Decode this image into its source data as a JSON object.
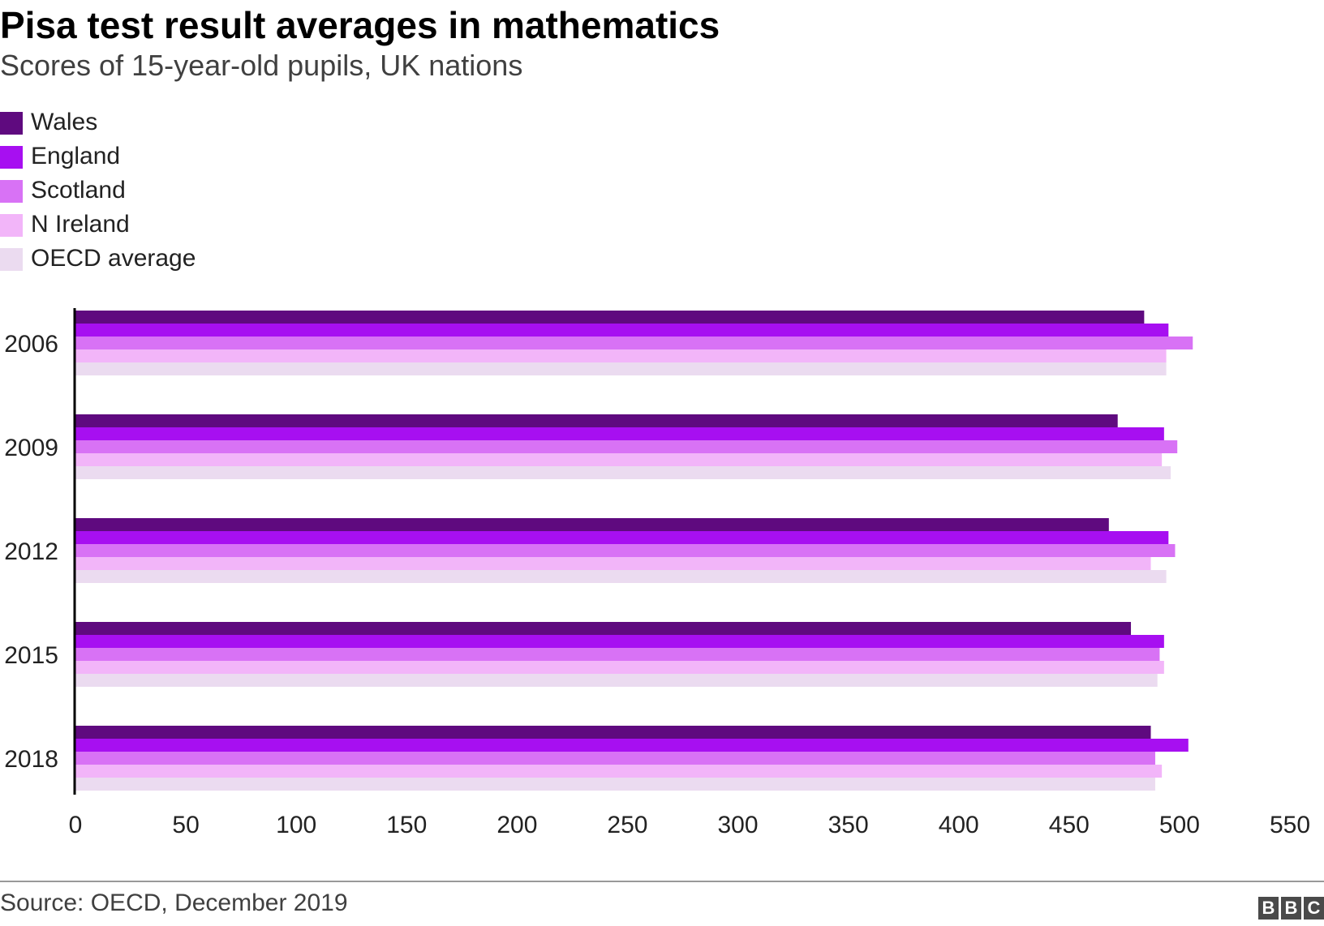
{
  "title": "Pisa test result averages in mathematics",
  "subtitle": "Scores of 15-year-old pupils, UK nations",
  "source": "Source: OECD, December 2019",
  "logo": {
    "letters": [
      "B",
      "B",
      "C"
    ],
    "text": "BBC"
  },
  "chart_data": {
    "type": "bar",
    "orientation": "horizontal",
    "title": "Pisa test result averages in mathematics",
    "subtitle": "Scores of 15-year-old pupils, UK nations",
    "categories": [
      "2006",
      "2009",
      "2012",
      "2015",
      "2018"
    ],
    "series": [
      {
        "name": "Wales",
        "color": "#5f0a7f",
        "values": [
          484,
          472,
          468,
          478,
          487
        ]
      },
      {
        "name": "England",
        "color": "#a70ff1",
        "values": [
          495,
          493,
          495,
          493,
          504
        ]
      },
      {
        "name": "Scotland",
        "color": "#d872f5",
        "values": [
          506,
          499,
          498,
          491,
          489
        ]
      },
      {
        "name": "N Ireland",
        "color": "#f2b5f9",
        "values": [
          494,
          492,
          487,
          493,
          492
        ]
      },
      {
        "name": "OECD average",
        "color": "#ebdbf0",
        "values": [
          494,
          496,
          494,
          490,
          489
        ]
      }
    ],
    "xlim": [
      0,
      550
    ],
    "xticks": [
      0,
      50,
      100,
      150,
      200,
      250,
      300,
      350,
      400,
      450,
      500,
      550
    ],
    "xlabel": "",
    "ylabel": "",
    "grid": false,
    "legend_position": "top-left"
  }
}
